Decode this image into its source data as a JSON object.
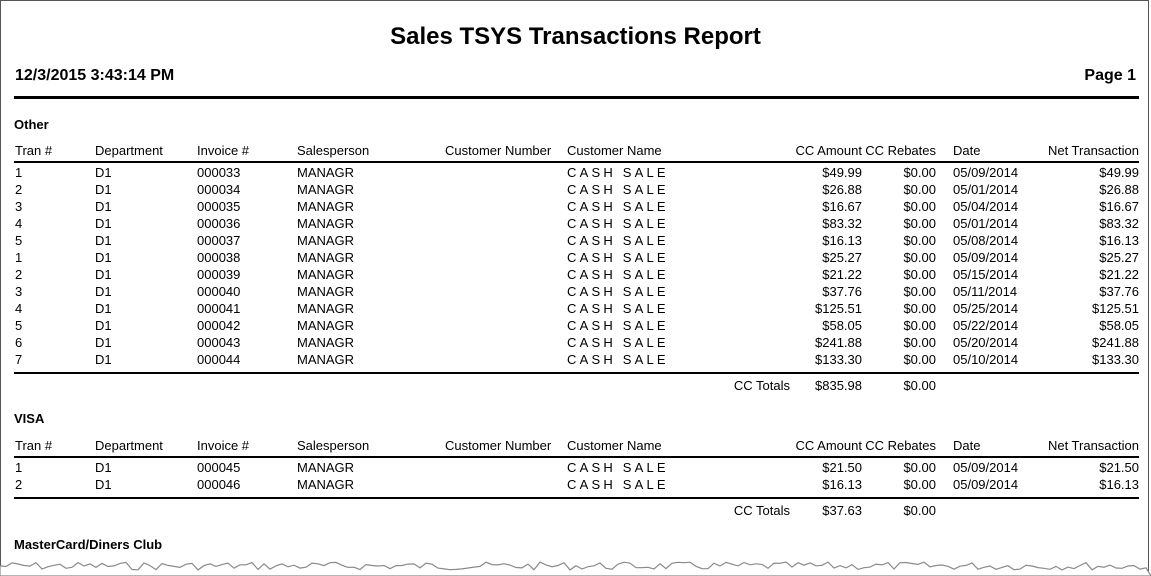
{
  "report": {
    "title": "Sales TSYS Transactions Report",
    "datetime": "12/3/2015  3:43:14 PM",
    "page": "Page 1"
  },
  "columns": {
    "tran": "Tran #",
    "dept": "Department",
    "inv": "Invoice #",
    "sales": "Salesperson",
    "cnum": "Customer Number",
    "cname": "Customer Name",
    "amt": "CC Amount",
    "reb": "CC Rebates",
    "date": "Date",
    "net": "Net Transaction"
  },
  "totals_label": "CC Totals",
  "sections": [
    {
      "name": "Other",
      "rows": [
        {
          "tran": "1",
          "dept": "D1",
          "inv": "000033",
          "sales": "MANAGR",
          "cnum": "",
          "cname": "CASH SALE",
          "amt": "$49.99",
          "reb": "$0.00",
          "date": "05/09/2014",
          "net": "$49.99"
        },
        {
          "tran": "2",
          "dept": "D1",
          "inv": "000034",
          "sales": "MANAGR",
          "cnum": "",
          "cname": "CASH SALE",
          "amt": "$26.88",
          "reb": "$0.00",
          "date": "05/01/2014",
          "net": "$26.88"
        },
        {
          "tran": "3",
          "dept": "D1",
          "inv": "000035",
          "sales": "MANAGR",
          "cnum": "",
          "cname": "CASH SALE",
          "amt": "$16.67",
          "reb": "$0.00",
          "date": "05/04/2014",
          "net": "$16.67"
        },
        {
          "tran": "4",
          "dept": "D1",
          "inv": "000036",
          "sales": "MANAGR",
          "cnum": "",
          "cname": "CASH SALE",
          "amt": "$83.32",
          "reb": "$0.00",
          "date": "05/01/2014",
          "net": "$83.32"
        },
        {
          "tran": "5",
          "dept": "D1",
          "inv": "000037",
          "sales": "MANAGR",
          "cnum": "",
          "cname": "CASH SALE",
          "amt": "$16.13",
          "reb": "$0.00",
          "date": "05/08/2014",
          "net": "$16.13"
        },
        {
          "tran": "1",
          "dept": "D1",
          "inv": "000038",
          "sales": "MANAGR",
          "cnum": "",
          "cname": "CASH SALE",
          "amt": "$25.27",
          "reb": "$0.00",
          "date": "05/09/2014",
          "net": "$25.27"
        },
        {
          "tran": "2",
          "dept": "D1",
          "inv": "000039",
          "sales": "MANAGR",
          "cnum": "",
          "cname": "CASH SALE",
          "amt": "$21.22",
          "reb": "$0.00",
          "date": "05/15/2014",
          "net": "$21.22"
        },
        {
          "tran": "3",
          "dept": "D1",
          "inv": "000040",
          "sales": "MANAGR",
          "cnum": "",
          "cname": "CASH SALE",
          "amt": "$37.76",
          "reb": "$0.00",
          "date": "05/11/2014",
          "net": "$37.76"
        },
        {
          "tran": "4",
          "dept": "D1",
          "inv": "000041",
          "sales": "MANAGR",
          "cnum": "",
          "cname": "CASH SALE",
          "amt": "$125.51",
          "reb": "$0.00",
          "date": "05/25/2014",
          "net": "$125.51"
        },
        {
          "tran": "5",
          "dept": "D1",
          "inv": "000042",
          "sales": "MANAGR",
          "cnum": "",
          "cname": "CASH SALE",
          "amt": "$58.05",
          "reb": "$0.00",
          "date": "05/22/2014",
          "net": "$58.05"
        },
        {
          "tran": "6",
          "dept": "D1",
          "inv": "000043",
          "sales": "MANAGR",
          "cnum": "",
          "cname": "CASH SALE",
          "amt": "$241.88",
          "reb": "$0.00",
          "date": "05/20/2014",
          "net": "$241.88"
        },
        {
          "tran": "7",
          "dept": "D1",
          "inv": "000044",
          "sales": "MANAGR",
          "cnum": "",
          "cname": "CASH SALE",
          "amt": "$133.30",
          "reb": "$0.00",
          "date": "05/10/2014",
          "net": "$133.30"
        }
      ],
      "total_amt": "$835.98",
      "total_reb": "$0.00"
    },
    {
      "name": "VISA",
      "rows": [
        {
          "tran": "1",
          "dept": "D1",
          "inv": "000045",
          "sales": "MANAGR",
          "cnum": "",
          "cname": "CASH SALE",
          "amt": "$21.50",
          "reb": "$0.00",
          "date": "05/09/2014",
          "net": "$21.50"
        },
        {
          "tran": "2",
          "dept": "D1",
          "inv": "000046",
          "sales": "MANAGR",
          "cnum": "",
          "cname": "CASH SALE",
          "amt": "$16.13",
          "reb": "$0.00",
          "date": "05/09/2014",
          "net": "$16.13"
        }
      ],
      "total_amt": "$37.63",
      "total_reb": "$0.00"
    },
    {
      "name": "MasterCard/Diners Club",
      "rows": []
    }
  ]
}
